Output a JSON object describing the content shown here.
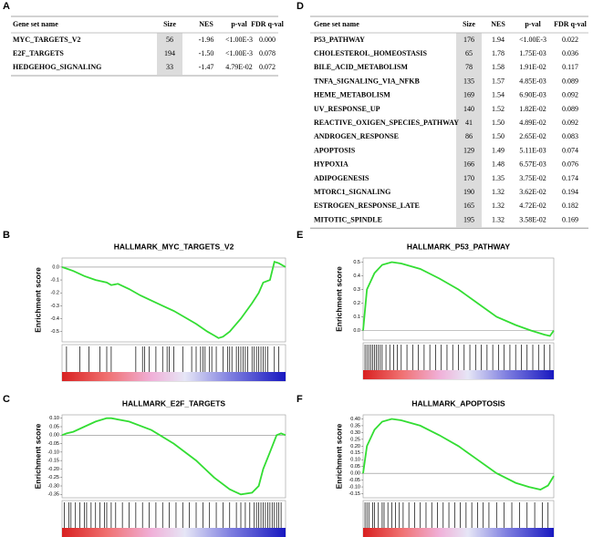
{
  "tables": [
    {
      "label": "A",
      "columns": [
        "Gene set name",
        "Size",
        "NES",
        "p-val",
        "FDR q-val"
      ],
      "rows": [
        [
          "MYC_TARGETS_V2",
          "56",
          "-1.96",
          "<1.00E-3",
          "0.000"
        ],
        [
          "E2F_TARGETS",
          "194",
          "-1.50",
          "<1.00E-3",
          "0.078"
        ],
        [
          "HEDGEHOG_SIGNALING",
          "33",
          "-1.47",
          "4.79E-02",
          "0.072"
        ]
      ]
    },
    {
      "label": "D",
      "columns": [
        "Gene set name",
        "Size",
        "NES",
        "p-val",
        "FDR q-val"
      ],
      "rows": [
        [
          "P53_PATHWAY",
          "176",
          "1.94",
          "<1.00E-3",
          "0.022"
        ],
        [
          "CHOLESTEROL_HOMEOSTASIS",
          "65",
          "1.78",
          "1.75E-03",
          "0.036"
        ],
        [
          "BILE_ACID_METABOLISM",
          "78",
          "1.58",
          "1.91E-02",
          "0.117"
        ],
        [
          "TNFA_SIGNALING_VIA_NFKB",
          "135",
          "1.57",
          "4.85E-03",
          "0.089"
        ],
        [
          "HEME_METABOLISM",
          "169",
          "1.54",
          "6.90E-03",
          "0.092"
        ],
        [
          "UV_RESPONSE_UP",
          "140",
          "1.52",
          "1.82E-02",
          "0.089"
        ],
        [
          "REACTIVE_OXIGEN_SPECIES_PATHWAY",
          "41",
          "1.50",
          "4.89E-02",
          "0.092"
        ],
        [
          "ANDROGEN_RESPONSE",
          "86",
          "1.50",
          "2.65E-02",
          "0.083"
        ],
        [
          "APOPTOSIS",
          "129",
          "1.49",
          "5.11E-03",
          "0.074"
        ],
        [
          "HYPOXIA",
          "166",
          "1.48",
          "6.57E-03",
          "0.076"
        ],
        [
          "ADIPOGENESIS",
          "170",
          "1.35",
          "3.75E-02",
          "0.174"
        ],
        [
          "MTORC1_SIGNALING",
          "190",
          "1.32",
          "3.62E-02",
          "0.194"
        ],
        [
          "ESTROGEN_RESPONSE_LATE",
          "165",
          "1.32",
          "4.72E-02",
          "0.182"
        ],
        [
          "MITOTIC_SPINDLE",
          "195",
          "1.32",
          "3.58E-02",
          "0.169"
        ]
      ]
    }
  ],
  "chart_data": [
    {
      "type": "line",
      "label": "B",
      "title": "HALLMARK_MYC_TARGETS_V2",
      "ylabel": "Enrichment score",
      "color": "#33dd33",
      "xlim": [
        0,
        1
      ],
      "ylim": [
        -0.58,
        0.07
      ],
      "yticks": [
        {
          "value": 0,
          "label": "0.0"
        },
        -0.1,
        -0.2,
        -0.3,
        -0.4,
        -0.5
      ],
      "x": [
        0,
        0.05,
        0.1,
        0.15,
        0.2,
        0.22,
        0.25,
        0.3,
        0.35,
        0.4,
        0.45,
        0.5,
        0.55,
        0.6,
        0.65,
        0.68,
        0.7,
        0.72,
        0.75,
        0.8,
        0.85,
        0.88,
        0.9,
        0.93,
        0.95,
        0.97,
        1.0
      ],
      "values": [
        0,
        -0.03,
        -0.07,
        -0.1,
        -0.12,
        -0.14,
        -0.13,
        -0.17,
        -0.22,
        -0.26,
        -0.3,
        -0.34,
        -0.39,
        -0.44,
        -0.5,
        -0.53,
        -0.55,
        -0.54,
        -0.5,
        -0.4,
        -0.28,
        -0.2,
        -0.12,
        -0.1,
        0.04,
        0.03,
        0.0
      ],
      "hits": [
        0.02,
        0.08,
        0.12,
        0.17,
        0.2,
        0.22,
        0.33,
        0.36,
        0.37,
        0.39,
        0.42,
        0.45,
        0.47,
        0.48,
        0.5,
        0.54,
        0.58,
        0.6,
        0.62,
        0.63,
        0.64,
        0.66,
        0.67,
        0.69,
        0.72,
        0.74,
        0.75,
        0.76,
        0.78,
        0.79,
        0.8,
        0.81,
        0.82,
        0.83,
        0.85,
        0.86,
        0.87,
        0.88,
        0.89,
        0.9,
        0.91,
        0.92,
        0.95,
        0.97
      ]
    },
    {
      "type": "line",
      "label": "C",
      "title": "HALLMARK_E2F_TARGETS",
      "ylabel": "Enrichment score",
      "color": "#33dd33",
      "xlim": [
        0,
        1
      ],
      "ylim": [
        -0.37,
        0.12
      ],
      "yticks": [
        {
          "value": 0.1,
          "label": "0.10"
        },
        0.05,
        {
          "value": 0,
          "label": "0.00"
        },
        -0.05,
        {
          "value": -0.1,
          "label": "-0.10"
        },
        -0.15,
        {
          "value": -0.2,
          "label": "-0.20"
        },
        -0.25,
        {
          "value": -0.3,
          "label": "-0.30"
        },
        -0.35
      ],
      "x": [
        0,
        0.02,
        0.05,
        0.1,
        0.15,
        0.2,
        0.22,
        0.3,
        0.4,
        0.5,
        0.6,
        0.68,
        0.75,
        0.8,
        0.85,
        0.88,
        0.9,
        0.93,
        0.96,
        0.98,
        1.0
      ],
      "values": [
        0,
        0.01,
        0.02,
        0.05,
        0.08,
        0.1,
        0.1,
        0.08,
        0.03,
        -0.05,
        -0.15,
        -0.25,
        -0.32,
        -0.35,
        -0.34,
        -0.3,
        -0.2,
        -0.1,
        0,
        0.01,
        0
      ],
      "hits": [
        0.01,
        0.03,
        0.04,
        0.06,
        0.08,
        0.1,
        0.11,
        0.13,
        0.15,
        0.17,
        0.19,
        0.2,
        0.22,
        0.24,
        0.27,
        0.3,
        0.33,
        0.36,
        0.39,
        0.42,
        0.45,
        0.48,
        0.51,
        0.54,
        0.57,
        0.6,
        0.63,
        0.66,
        0.69,
        0.72,
        0.75,
        0.78,
        0.8,
        0.82,
        0.84,
        0.86,
        0.87,
        0.88,
        0.89,
        0.9,
        0.91,
        0.92,
        0.93,
        0.94,
        0.95,
        0.96,
        0.97,
        0.98
      ]
    },
    {
      "type": "line",
      "label": "E",
      "title": "HALLMARK_P53_PATHWAY",
      "ylabel": "Enrichment score",
      "color": "#33dd33",
      "xlim": [
        0,
        1
      ],
      "ylim": [
        -0.07,
        0.53
      ],
      "yticks": [
        0.5,
        0.4,
        0.3,
        0.2,
        0.1,
        {
          "value": 0,
          "label": "0.0"
        }
      ],
      "x": [
        0,
        0.02,
        0.06,
        0.1,
        0.15,
        0.2,
        0.3,
        0.4,
        0.5,
        0.6,
        0.7,
        0.8,
        0.88,
        0.95,
        0.98,
        1.0
      ],
      "values": [
        0,
        0.3,
        0.42,
        0.48,
        0.5,
        0.49,
        0.45,
        0.38,
        0.3,
        0.2,
        0.1,
        0.04,
        0,
        -0.03,
        -0.04,
        0
      ],
      "hits": [
        0.01,
        0.02,
        0.03,
        0.04,
        0.05,
        0.06,
        0.07,
        0.08,
        0.09,
        0.1,
        0.12,
        0.14,
        0.16,
        0.18,
        0.2,
        0.23,
        0.26,
        0.29,
        0.32,
        0.35,
        0.38,
        0.41,
        0.44,
        0.47,
        0.5,
        0.53,
        0.56,
        0.59,
        0.62,
        0.65,
        0.68,
        0.71,
        0.74,
        0.77,
        0.8,
        0.83,
        0.86,
        0.89,
        0.92,
        0.95,
        0.98
      ]
    },
    {
      "type": "line",
      "label": "F",
      "title": "HALLMARK_APOPTOSIS",
      "ylabel": "Enrichment score",
      "color": "#33dd33",
      "xlim": [
        0,
        1
      ],
      "ylim": [
        -0.18,
        0.43
      ],
      "yticks": [
        {
          "value": 0.4,
          "label": "0.40"
        },
        0.35,
        {
          "value": 0.3,
          "label": "0.30"
        },
        0.25,
        {
          "value": 0.2,
          "label": "0.20"
        },
        0.15,
        {
          "value": 0.1,
          "label": "0.10"
        },
        0.05,
        {
          "value": 0,
          "label": "0.00"
        },
        -0.05,
        {
          "value": -0.1,
          "label": "-0.10"
        },
        -0.15
      ],
      "x": [
        0,
        0.02,
        0.06,
        0.1,
        0.15,
        0.2,
        0.3,
        0.4,
        0.5,
        0.6,
        0.7,
        0.8,
        0.87,
        0.93,
        0.97,
        1.0
      ],
      "values": [
        0,
        0.2,
        0.32,
        0.38,
        0.4,
        0.39,
        0.35,
        0.28,
        0.2,
        0.1,
        0,
        -0.07,
        -0.1,
        -0.12,
        -0.09,
        -0.02
      ],
      "hits": [
        0.01,
        0.02,
        0.03,
        0.05,
        0.06,
        0.08,
        0.1,
        0.11,
        0.13,
        0.15,
        0.17,
        0.19,
        0.21,
        0.24,
        0.27,
        0.3,
        0.33,
        0.36,
        0.39,
        0.42,
        0.45,
        0.48,
        0.51,
        0.54,
        0.57,
        0.6,
        0.63,
        0.66,
        0.7,
        0.74,
        0.78,
        0.82,
        0.86,
        0.9,
        0.94,
        0.97
      ]
    }
  ]
}
